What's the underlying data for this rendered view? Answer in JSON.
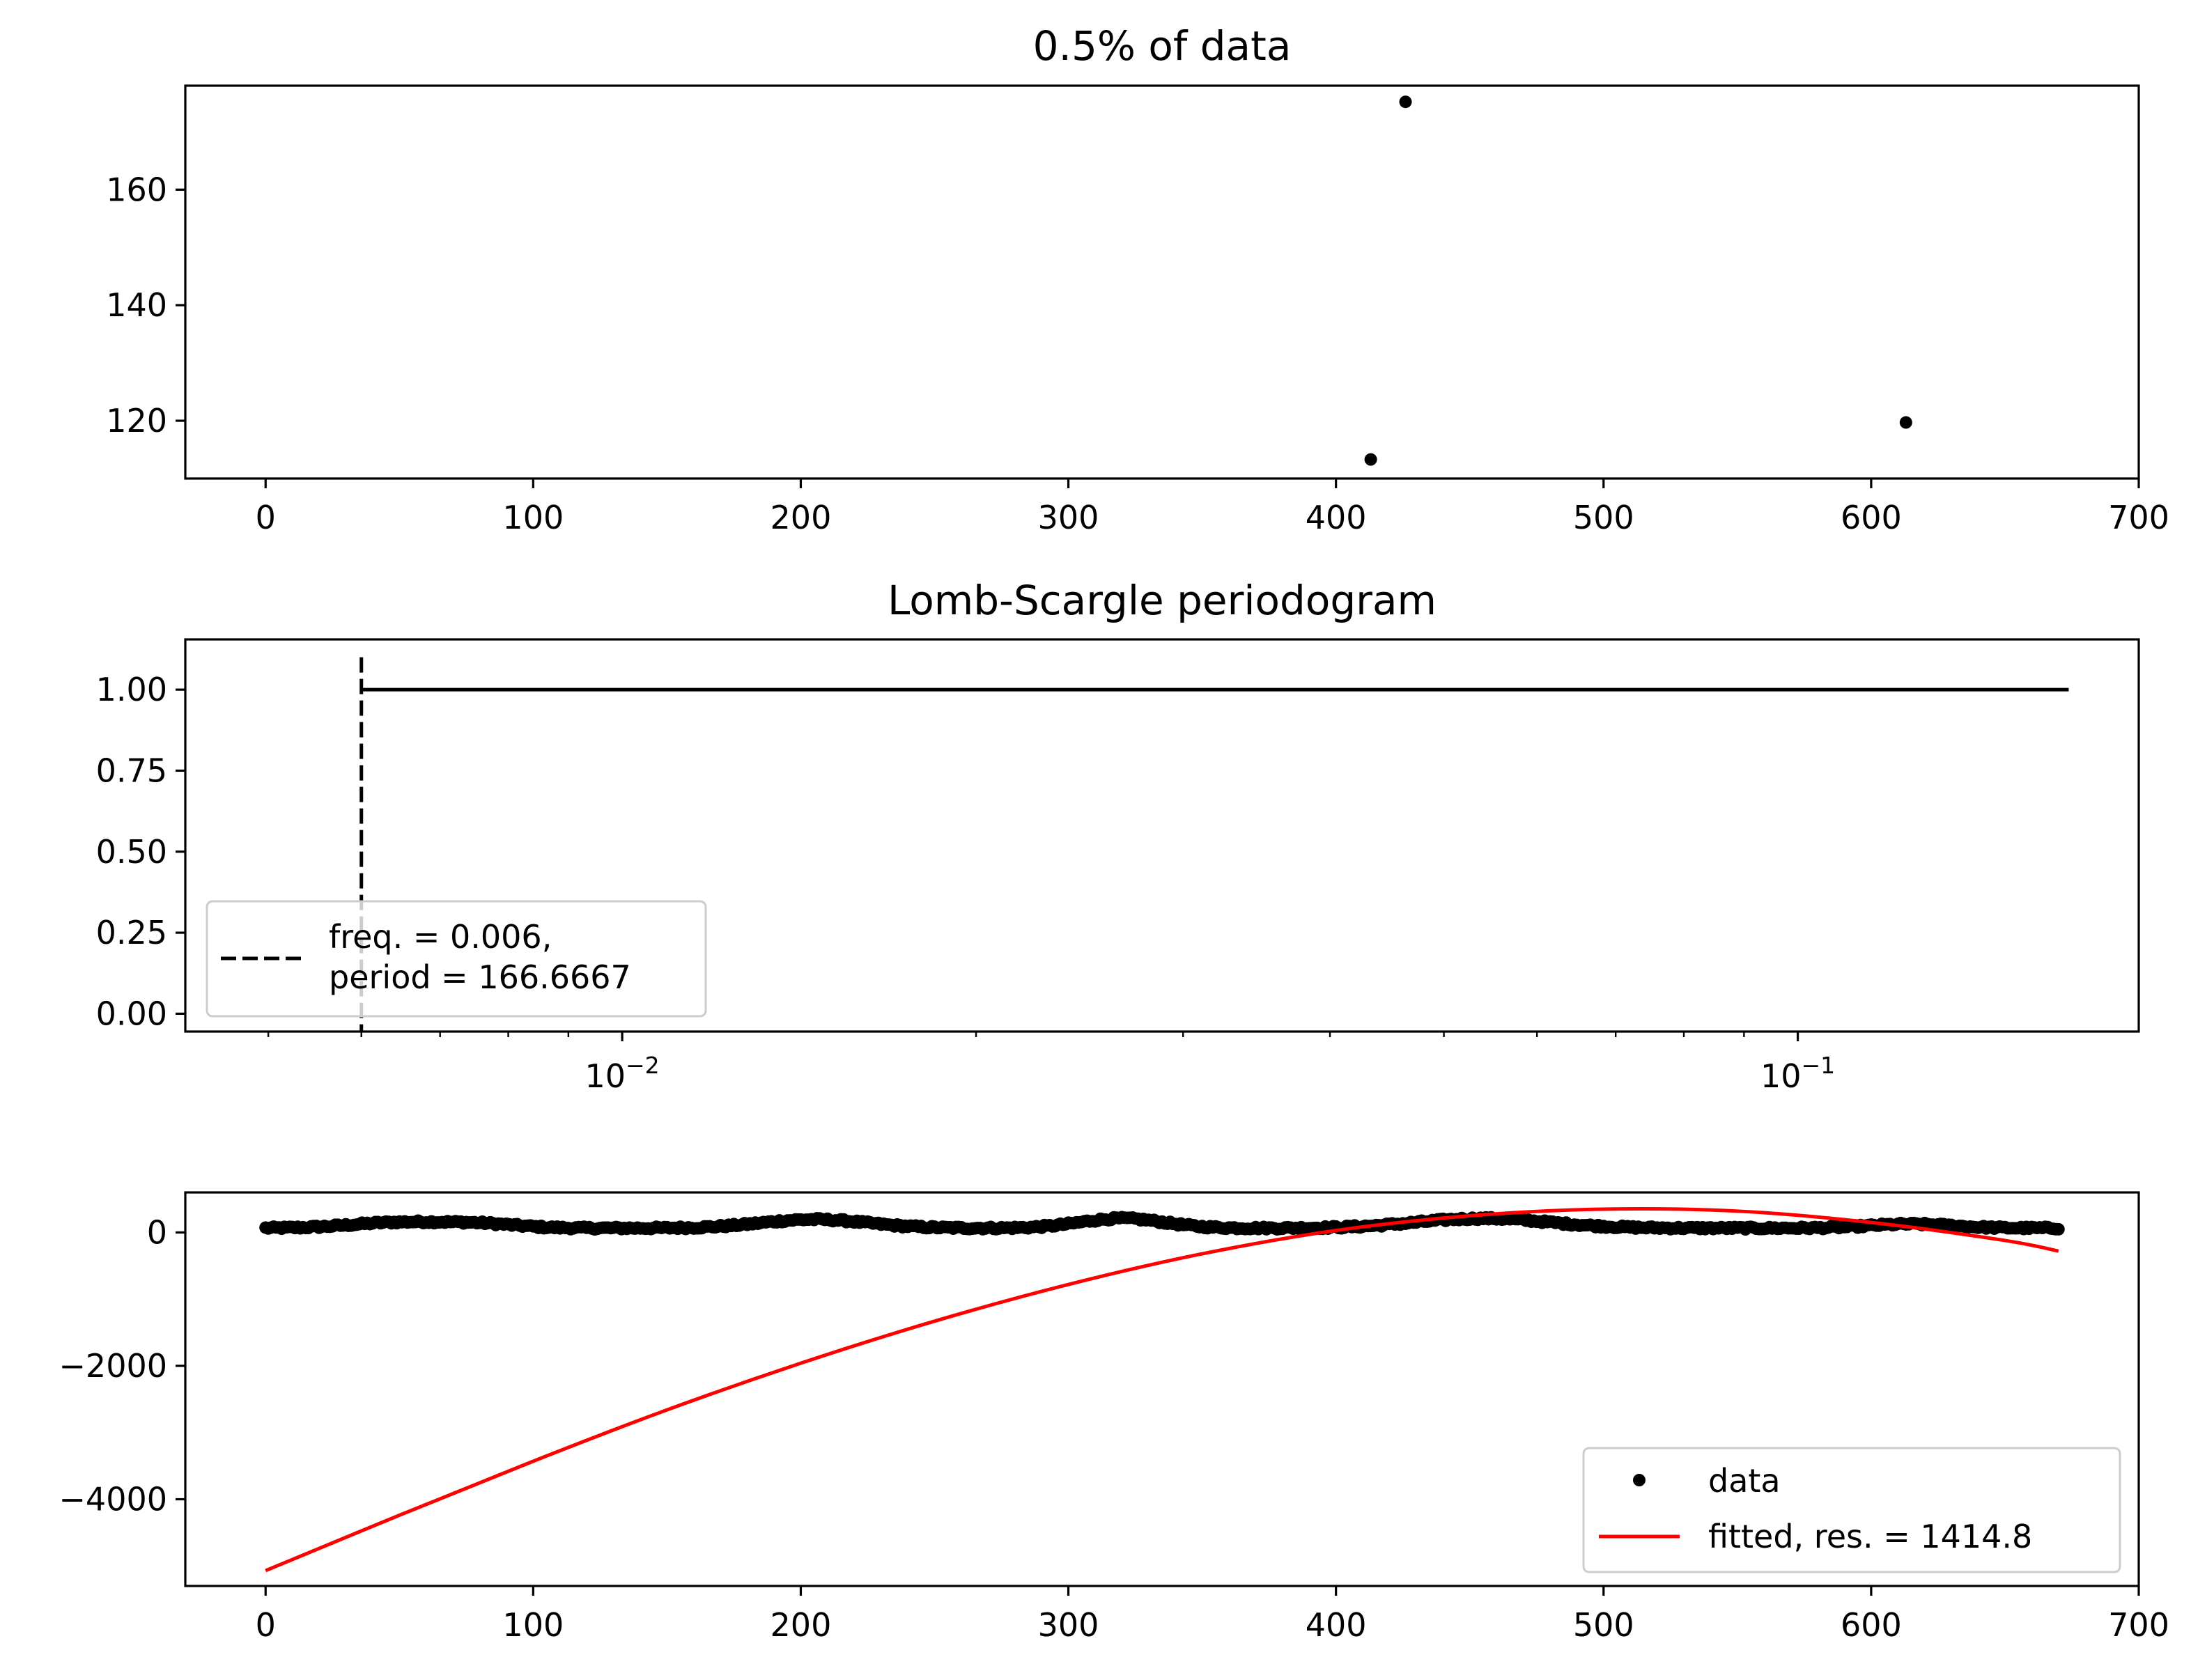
{
  "colors": {
    "data_marker": "#000000",
    "fit_line": "#ff0000",
    "periodogram_line": "#000000",
    "best_freq_line": "#000000"
  },
  "chart_data": [
    {
      "id": "sample",
      "type": "scatter",
      "title": "0.5% of data",
      "xlabel": "",
      "ylabel": "",
      "xlim": [
        -30,
        700
      ],
      "ylim": [
        110,
        178
      ],
      "x_ticks": [
        0,
        100,
        200,
        300,
        400,
        500,
        600,
        700
      ],
      "y_ticks": [
        120,
        140,
        160
      ],
      "points": [
        {
          "x": 413,
          "y": 113.3
        },
        {
          "x": 426,
          "y": 175.2
        },
        {
          "x": 613,
          "y": 119.7
        }
      ],
      "grid": false
    },
    {
      "id": "periodogram",
      "type": "line",
      "title": "Lomb-Scargle periodogram",
      "x_scale": "log",
      "xlim": [
        0.00425,
        0.195
      ],
      "ylim": [
        -0.055,
        1.155
      ],
      "x_ticks": [
        0.01,
        0.1
      ],
      "x_tick_labels": [
        {
          "base": "10",
          "exp": "−2"
        },
        {
          "base": "10",
          "exp": "−1"
        }
      ],
      "y_ticks": [
        0.0,
        0.25,
        0.5,
        0.75,
        1.0
      ],
      "y_tick_labels": [
        "0.00",
        "0.25",
        "0.50",
        "0.75",
        "1.00"
      ],
      "series": [
        {
          "x": [
            0.006,
            0.17
          ],
          "y": [
            1.0,
            1.0
          ],
          "style": "solid"
        }
      ],
      "vline": {
        "x": 0.006,
        "ymin": -0.055,
        "ymax": 1.1,
        "style": "dashed"
      },
      "legend": {
        "placement": "lower-left",
        "entries": [
          {
            "style": "dashed",
            "lines": [
              "freq. = 0.006,",
              "period = 166.6667"
            ]
          }
        ]
      },
      "grid": false
    },
    {
      "id": "fit",
      "type": "scatter+line",
      "title": "",
      "xlim": [
        -30,
        700
      ],
      "ylim": [
        -5300,
        600
      ],
      "x_ticks": [
        0,
        100,
        200,
        300,
        400,
        500,
        600,
        700
      ],
      "y_ticks": [
        0,
        -2000,
        -4000
      ],
      "y_tick_labels": [
        "0",
        "−2000",
        "−4000"
      ],
      "data_series": {
        "name": "data",
        "x_range": [
          0,
          670
        ],
        "baseline": 65,
        "bumps": [
          {
            "center": 50,
            "width": 25,
            "amp": 85
          },
          {
            "center": 80,
            "width": 20,
            "amp": 60
          },
          {
            "center": 205,
            "width": 28,
            "amp": 130
          },
          {
            "center": 320,
            "width": 22,
            "amp": 145
          },
          {
            "center": 455,
            "width": 35,
            "amp": 145
          },
          {
            "center": 615,
            "width": 22,
            "amp": 60
          }
        ],
        "noise": 20
      },
      "fit_series": {
        "name": "fitted, res. = 1414.8",
        "x": [
          0,
          50,
          100,
          150,
          200,
          250,
          300,
          350,
          400,
          450,
          500,
          550,
          600,
          650,
          670
        ],
        "y": [
          -5070,
          -4240,
          -3430,
          -2660,
          -1960,
          -1330,
          -780,
          -320,
          30,
          250,
          350,
          320,
          150,
          -120,
          -280
        ]
      },
      "legend": {
        "placement": "lower-right",
        "entries": [
          {
            "style": "marker",
            "label": "data"
          },
          {
            "style": "line",
            "label": "fitted, res. = 1414.8"
          }
        ]
      },
      "grid": false
    }
  ]
}
